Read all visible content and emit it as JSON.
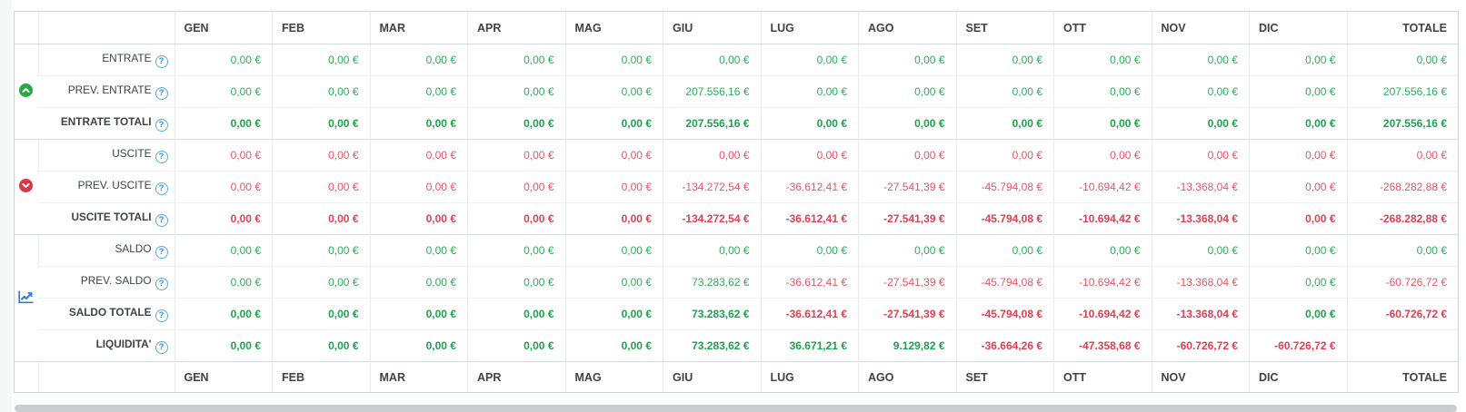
{
  "colors": {
    "green": "#2fae5e",
    "red": "#ea5565",
    "green_bold": "#1fa14f",
    "red_bold": "#e23f52",
    "entrate_icon": "#28a745",
    "uscite_icon": "#dc3545",
    "saldo_icon": "#2e7cd6",
    "help_blue": "#2e93dd",
    "header_text": "#3c434a",
    "scrollbar_thumb": "#c9cdd0"
  },
  "table": {
    "help_glyph": "?",
    "months": [
      "GEN",
      "FEB",
      "MAR",
      "APR",
      "MAG",
      "GIU",
      "LUG",
      "AGO",
      "SET",
      "OTT",
      "NOV",
      "DIC"
    ],
    "total_label": "TOTALE",
    "groups": [
      {
        "name": "entrate",
        "icon": "arrow-up-circle-icon",
        "rows": [
          {
            "label": "ENTRATE",
            "bold": false,
            "values": [
              "0,00 €",
              "0,00 €",
              "0,00 €",
              "0,00 €",
              "0,00 €",
              "0,00 €",
              "0,00 €",
              "0,00 €",
              "0,00 €",
              "0,00 €",
              "0,00 €",
              "0,00 €",
              "0,00 €"
            ],
            "colors": [
              "g",
              "g",
              "g",
              "g",
              "g",
              "g",
              "g",
              "g",
              "g",
              "g",
              "g",
              "g",
              "g"
            ]
          },
          {
            "label": "PREV. ENTRATE",
            "bold": false,
            "values": [
              "0,00 €",
              "0,00 €",
              "0,00 €",
              "0,00 €",
              "0,00 €",
              "207.556,16 €",
              "0,00 €",
              "0,00 €",
              "0,00 €",
              "0,00 €",
              "0,00 €",
              "0,00 €",
              "207.556,16 €"
            ],
            "colors": [
              "g",
              "g",
              "g",
              "g",
              "g",
              "g",
              "g",
              "g",
              "g",
              "g",
              "g",
              "g",
              "g"
            ]
          },
          {
            "label": "ENTRATE TOTALI",
            "bold": true,
            "values": [
              "0,00 €",
              "0,00 €",
              "0,00 €",
              "0,00 €",
              "0,00 €",
              "207.556,16 €",
              "0,00 €",
              "0,00 €",
              "0,00 €",
              "0,00 €",
              "0,00 €",
              "0,00 €",
              "207.556,16 €"
            ],
            "colors": [
              "g",
              "g",
              "g",
              "g",
              "g",
              "g",
              "g",
              "g",
              "g",
              "g",
              "g",
              "g",
              "g"
            ]
          }
        ]
      },
      {
        "name": "uscite",
        "icon": "arrow-down-circle-icon",
        "rows": [
          {
            "label": "USCITE",
            "bold": false,
            "values": [
              "0,00 €",
              "0,00 €",
              "0,00 €",
              "0,00 €",
              "0,00 €",
              "0,00 €",
              "0,00 €",
              "0,00 €",
              "0,00 €",
              "0,00 €",
              "0,00 €",
              "0,00 €",
              "0,00 €"
            ],
            "colors": [
              "r",
              "r",
              "r",
              "r",
              "r",
              "r",
              "r",
              "r",
              "r",
              "r",
              "r",
              "r",
              "r"
            ]
          },
          {
            "label": "PREV. USCITE",
            "bold": false,
            "values": [
              "0,00 €",
              "0,00 €",
              "0,00 €",
              "0,00 €",
              "0,00 €",
              "-134.272,54 €",
              "-36.612,41 €",
              "-27.541,39 €",
              "-45.794,08 €",
              "-10.694,42 €",
              "-13.368,04 €",
              "0,00 €",
              "-268.282,88 €"
            ],
            "colors": [
              "r",
              "r",
              "r",
              "r",
              "r",
              "r",
              "r",
              "r",
              "r",
              "r",
              "r",
              "r",
              "r"
            ]
          },
          {
            "label": "USCITE TOTALI",
            "bold": true,
            "values": [
              "0,00 €",
              "0,00 €",
              "0,00 €",
              "0,00 €",
              "0,00 €",
              "-134.272,54 €",
              "-36.612,41 €",
              "-27.541,39 €",
              "-45.794,08 €",
              "-10.694,42 €",
              "-13.368,04 €",
              "0,00 €",
              "-268.282,88 €"
            ],
            "colors": [
              "r",
              "r",
              "r",
              "r",
              "r",
              "r",
              "r",
              "r",
              "r",
              "r",
              "r",
              "r",
              "r"
            ]
          }
        ]
      },
      {
        "name": "saldo",
        "icon": "chart-line-icon",
        "rows": [
          {
            "label": "SALDO",
            "bold": false,
            "values": [
              "0,00 €",
              "0,00 €",
              "0,00 €",
              "0,00 €",
              "0,00 €",
              "0,00 €",
              "0,00 €",
              "0,00 €",
              "0,00 €",
              "0,00 €",
              "0,00 €",
              "0,00 €",
              "0,00 €"
            ],
            "colors": [
              "g",
              "g",
              "g",
              "g",
              "g",
              "g",
              "g",
              "g",
              "g",
              "g",
              "g",
              "g",
              "g"
            ]
          },
          {
            "label": "PREV. SALDO",
            "bold": false,
            "values": [
              "0,00 €",
              "0,00 €",
              "0,00 €",
              "0,00 €",
              "0,00 €",
              "73.283,62 €",
              "-36.612,41 €",
              "-27.541,39 €",
              "-45.794,08 €",
              "-10.694,42 €",
              "-13.368,04 €",
              "0,00 €",
              "-60.726,72 €"
            ],
            "colors": [
              "g",
              "g",
              "g",
              "g",
              "g",
              "g",
              "r",
              "r",
              "r",
              "r",
              "r",
              "g",
              "r"
            ]
          },
          {
            "label": "SALDO TOTALE",
            "bold": true,
            "values": [
              "0,00 €",
              "0,00 €",
              "0,00 €",
              "0,00 €",
              "0,00 €",
              "73.283,62 €",
              "-36.612,41 €",
              "-27.541,39 €",
              "-45.794,08 €",
              "-10.694,42 €",
              "-13.368,04 €",
              "0,00 €",
              "-60.726,72 €"
            ],
            "colors": [
              "g",
              "g",
              "g",
              "g",
              "g",
              "g",
              "r",
              "r",
              "r",
              "r",
              "r",
              "g",
              "r"
            ]
          },
          {
            "label": "LIQUIDITA'",
            "bold": true,
            "values": [
              "0,00 €",
              "0,00 €",
              "0,00 €",
              "0,00 €",
              "0,00 €",
              "73.283,62 €",
              "36.671,21 €",
              "9.129,82 €",
              "-36.664,26 €",
              "-47.358,68 €",
              "-60.726,72 €",
              "-60.726,72 €",
              ""
            ],
            "colors": [
              "g",
              "g",
              "g",
              "g",
              "g",
              "g",
              "g",
              "g",
              "r",
              "r",
              "r",
              "r",
              ""
            ]
          }
        ]
      }
    ]
  }
}
